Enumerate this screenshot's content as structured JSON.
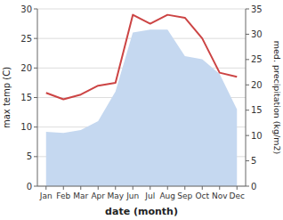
{
  "chart_data": {
    "type": "line",
    "categories": [
      "Jan",
      "Feb",
      "Mar",
      "Apr",
      "May",
      "Jun",
      "Jul",
      "Aug",
      "Sep",
      "Oct",
      "Nov",
      "Dec"
    ],
    "series": [
      {
        "type": "area",
        "color": "#c5d8f0",
        "values": [
          9.2,
          9.0,
          9.5,
          11.0,
          16.0,
          26.0,
          26.5,
          26.5,
          22.0,
          21.5,
          19.0,
          13.0
        ]
      },
      {
        "type": "line",
        "color": "#cc4444",
        "values": [
          15.8,
          14.7,
          15.5,
          17.0,
          17.5,
          29.0,
          27.5,
          29.0,
          28.5,
          25.0,
          19.2,
          18.5
        ]
      }
    ],
    "xlabel": "date (month)",
    "ylabel": "max temp (C)",
    "y2label": "med. precipitation (kg/m2)",
    "ylim": [
      0,
      30
    ],
    "yticks": [
      0,
      5,
      10,
      15,
      20,
      25,
      30
    ],
    "y2lim": [
      0,
      35
    ],
    "y2ticks": [
      0,
      5,
      10,
      15,
      20,
      25,
      30,
      35
    ],
    "grid": true
  }
}
